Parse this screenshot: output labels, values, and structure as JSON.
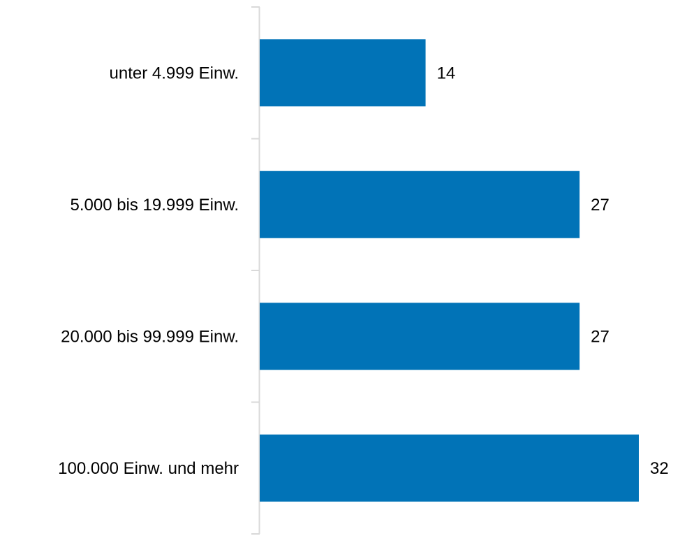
{
  "chart_data": {
    "type": "bar",
    "orientation": "horizontal",
    "categories": [
      "unter 4.999 Einw.",
      "5.000 bis 19.999 Einw.",
      "20.000 bis 99.999 Einw.",
      "100.000 Einw. und mehr"
    ],
    "values": [
      14,
      27,
      27,
      32
    ],
    "data_labels": [
      "14",
      "27",
      "27",
      "32"
    ],
    "title": "",
    "xlabel": "",
    "ylabel": "",
    "xlim": [
      0,
      32
    ],
    "grid": false,
    "legend": "none",
    "colors": {
      "bar": "#0173B7",
      "axis": "#D9D9D9",
      "text": "#000000"
    }
  }
}
